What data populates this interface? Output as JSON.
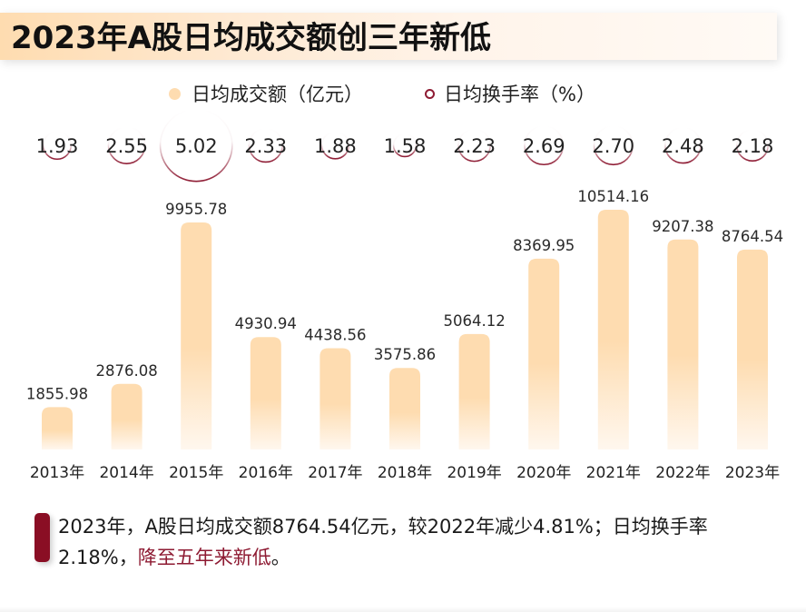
{
  "title": "2023年A股日均成交额创三年新低",
  "legend": {
    "bar_label": "日均成交额（亿元）",
    "circle_label": "日均换手率（%）"
  },
  "colors": {
    "bar": "#fedcb0",
    "circle": "#8e1b33",
    "accent": "#8a0e24"
  },
  "chart_data": {
    "type": "bar",
    "title": "2023年A股日均成交额创三年新低",
    "xlabel": "",
    "ylabel": "",
    "categories": [
      "2013年",
      "2014年",
      "2015年",
      "2016年",
      "2017年",
      "2018年",
      "2019年",
      "2020年",
      "2021年",
      "2022年",
      "2023年"
    ],
    "series": [
      {
        "name": "日均成交额（亿元）",
        "type": "bar",
        "values": [
          1855.98,
          2876.08,
          9955.78,
          4930.94,
          4438.56,
          3575.86,
          5064.12,
          8369.95,
          10514.16,
          9207.38,
          8764.54
        ],
        "labels": [
          "1855.98",
          "2876.08",
          "9955.78",
          "4930.94",
          "4438.56",
          "3575.86",
          "5064.12",
          "8369.95",
          "10514.16",
          "9207.38",
          "8764.54"
        ]
      },
      {
        "name": "日均换手率（%）",
        "type": "bubble",
        "values": [
          1.93,
          2.55,
          5.02,
          2.33,
          1.88,
          1.58,
          2.23,
          2.69,
          2.7,
          2.48,
          2.18
        ],
        "labels": [
          "1.93",
          "2.55",
          "5.02",
          "2.33",
          "1.88",
          "1.58",
          "2.23",
          "2.69",
          "2.70",
          "2.48",
          "2.18"
        ]
      }
    ],
    "ylim": [
      0,
      10514.16
    ],
    "grid": false,
    "legend_position": "top-center"
  },
  "note": {
    "text_main": "2023年，A股日均成交额8764.54亿元，较2022年减少4.81%；日均换手率2.18%，",
    "text_highlight": "降至五年来新低",
    "text_end": "。"
  }
}
